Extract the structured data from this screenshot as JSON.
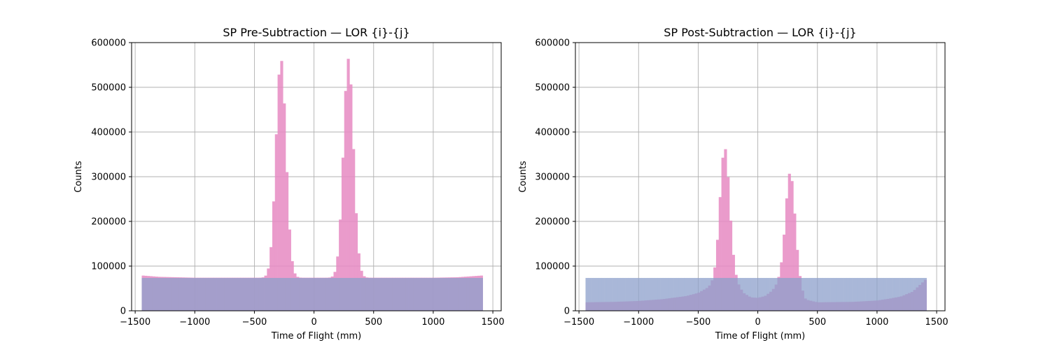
{
  "chart_data": [
    {
      "type": "bar",
      "title": "SP Pre-Subtraction — LOR {i}-{j}",
      "xlabel": "Time of Flight (mm)",
      "ylabel": "Counts",
      "xlim": [
        -1530,
        1570
      ],
      "ylim": [
        0,
        600000
      ],
      "xticks": [
        -1500,
        -1000,
        -500,
        0,
        500,
        1000,
        1500
      ],
      "xtick_labels": [
        "−1500",
        "−1000",
        "−500",
        "0",
        "500",
        "1000",
        "1500"
      ],
      "yticks": [
        0,
        100000,
        200000,
        300000,
        400000,
        500000,
        600000
      ],
      "ytick_labels": [
        "0",
        "100000",
        "200000",
        "300000",
        "400000",
        "500000",
        "600000"
      ],
      "grid": true,
      "bin_range": [
        -1445,
        1415
      ],
      "bin_count": 128,
      "series": [
        {
          "color": "#e78ac3",
          "alpha": 0.85,
          "profile": {
            "baseline": [
              [
                -1445,
                79000
              ],
              [
                -1300,
                76000
              ],
              [
                -1000,
                74000
              ],
              [
                -700,
                74000
              ],
              [
                -500,
                74000
              ],
              [
                -200,
                74000
              ],
              [
                0,
                74000
              ],
              [
                200,
                74000
              ],
              [
                500,
                74000
              ],
              [
                800,
                74000
              ],
              [
                1000,
                74000
              ],
              [
                1200,
                75000
              ],
              [
                1415,
                79000
              ]
            ],
            "peaks": [
              {
                "center": -278,
                "amplitude": 490000,
                "sigma": 42
              },
              {
                "center": 288,
                "amplitude": 490000,
                "sigma": 42
              }
            ]
          }
        },
        {
          "color": "#8da0cb",
          "alpha": 0.75,
          "profile": {
            "baseline": [
              [
                -1445,
                73500
              ],
              [
                1415,
                73500
              ]
            ],
            "peaks": []
          }
        }
      ]
    },
    {
      "type": "bar",
      "title": "SP Post-Subtraction — LOR {i}-{j}",
      "xlabel": "Time of Flight (mm)",
      "ylabel": "Counts",
      "xlim": [
        -1530,
        1570
      ],
      "ylim": [
        0,
        600000
      ],
      "xticks": [
        -1500,
        -1000,
        -500,
        0,
        500,
        1000,
        1500
      ],
      "xtick_labels": [
        "−1500",
        "−1000",
        "−500",
        "0",
        "500",
        "1000",
        "1500"
      ],
      "yticks": [
        0,
        100000,
        200000,
        300000,
        400000,
        500000,
        600000
      ],
      "ytick_labels": [
        "0",
        "100000",
        "200000",
        "300000",
        "400000",
        "500000",
        "600000"
      ],
      "grid": true,
      "bin_range": [
        -1445,
        1415
      ],
      "bin_count": 128,
      "series": [
        {
          "color": "#e78ac3",
          "alpha": 0.85,
          "profile": {
            "baseline": [
              [
                -1445,
                19000
              ],
              [
                -1200,
                20000
              ],
              [
                -1000,
                22000
              ],
              [
                -800,
                26000
              ],
              [
                -600,
                33000
              ],
              [
                -500,
                40000
              ],
              [
                -420,
                52000
              ],
              [
                -360,
                64000
              ],
              [
                -300,
                74000
              ],
              [
                -200,
                70000
              ],
              [
                -120,
                40000
              ],
              [
                -60,
                30000
              ],
              [
                0,
                29000
              ],
              [
                60,
                33000
              ],
              [
                120,
                45000
              ],
              [
                180,
                65000
              ],
              [
                260,
                74000
              ],
              [
                340,
                55000
              ],
              [
                400,
                25000
              ],
              [
                500,
                19000
              ],
              [
                800,
                20000
              ],
              [
                1000,
                23000
              ],
              [
                1100,
                27000
              ],
              [
                1200,
                32000
              ],
              [
                1300,
                43000
              ],
              [
                1415,
                72000
              ]
            ],
            "peaks": [
              {
                "center": -278,
                "amplitude": 292000,
                "sigma": 40
              },
              {
                "center": 272,
                "amplitude": 238000,
                "sigma": 40
              }
            ]
          }
        },
        {
          "color": "#8da0cb",
          "alpha": 0.75,
          "profile": {
            "baseline": [
              [
                -1445,
                73500
              ],
              [
                1415,
                73500
              ]
            ],
            "peaks": []
          }
        }
      ]
    }
  ]
}
